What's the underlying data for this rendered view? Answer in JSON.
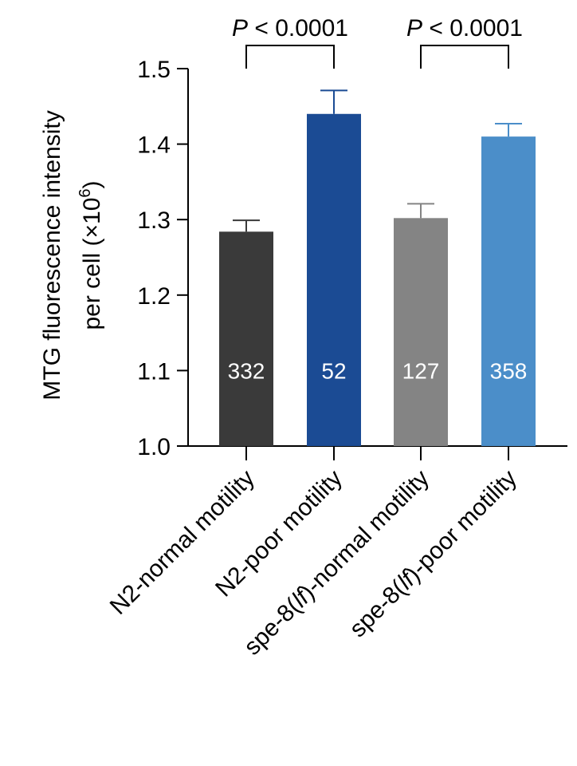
{
  "chart_data": {
    "type": "bar",
    "ylabel": "MTG fluorescence intensity per cell (×10⁶)",
    "ylabel_line1": "MTG fluorescence intensity",
    "ylabel_line2_prefix": "per cell (×10",
    "ylabel_line2_sup": "6",
    "ylabel_line2_suffix": ")",
    "ylim": [
      1.0,
      1.5
    ],
    "yticks": [
      1.0,
      1.1,
      1.2,
      1.3,
      1.4,
      1.5
    ],
    "ytick_labels": [
      "1.0",
      "1.1",
      "1.2",
      "1.3",
      "1.4",
      "1.5"
    ],
    "grid": false,
    "categories": [
      {
        "pre": "N2-normal motility",
        "ital": "",
        "post": ""
      },
      {
        "pre": "N2-poor motility",
        "ital": "",
        "post": ""
      },
      {
        "pre": "spe-8(",
        "ital": "lf",
        "post": ")-normal motility"
      },
      {
        "pre": "spe-8(",
        "ital": "lf",
        "post": ")-poor motility"
      }
    ],
    "values": [
      1.284,
      1.44,
      1.302,
      1.41
    ],
    "errors": [
      0.015,
      0.031,
      0.019,
      0.017
    ],
    "n_labels": [
      "332",
      "52",
      "127",
      "358"
    ],
    "n_label_value": 1.1,
    "colors": [
      "#3a3a3a",
      "#1b4b94",
      "#848484",
      "#4b8ec9"
    ],
    "comparisons": [
      {
        "between": [
          0,
          1
        ],
        "label_p": "P",
        "label_rest": " < 0.0001"
      },
      {
        "between": [
          2,
          3
        ],
        "label_p": "P",
        "label_rest": " < 0.0001"
      }
    ]
  }
}
